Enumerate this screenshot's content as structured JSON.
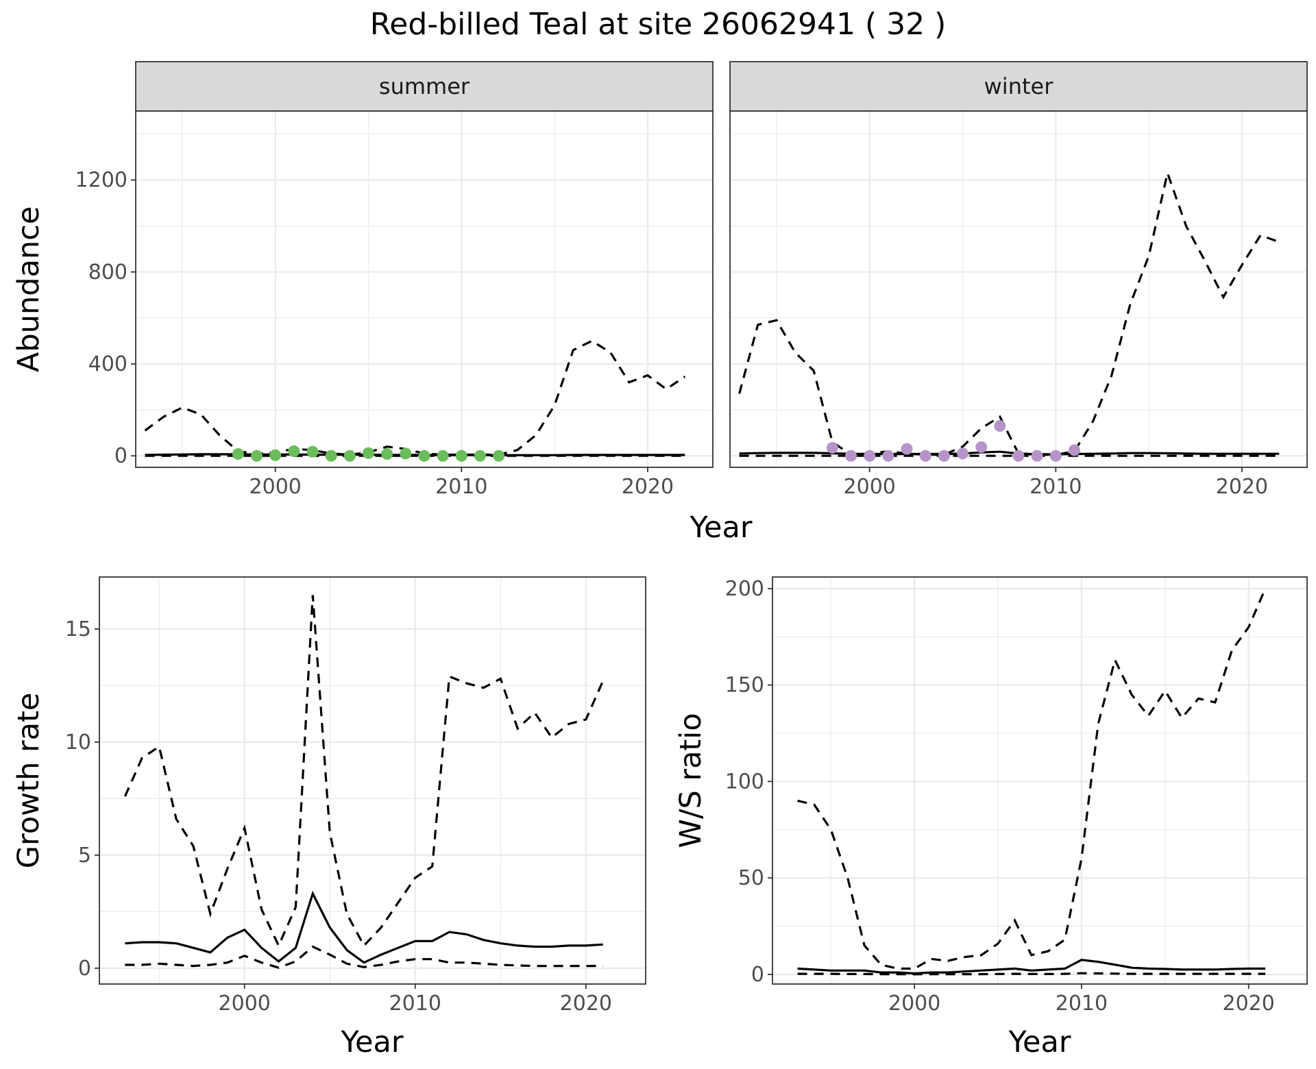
{
  "figure_title": "Red-billed Teal at site 26062941 ( 32 )",
  "colors": {
    "summer_points": "#6abd5a",
    "winter_points": "#b694c9",
    "lines": "#000000"
  },
  "chart_data": [
    {
      "id": "abundance",
      "type": "line",
      "ylabel": "Abundance",
      "xlabel": "Year",
      "xlim": [
        1992.5,
        2023.5
      ],
      "ylim": [
        -50,
        1500
      ],
      "xticks": [
        2000,
        2010,
        2020
      ],
      "yticks": [
        0,
        400,
        800,
        1200
      ],
      "grid": true,
      "facets": [
        {
          "strip": "summer",
          "x": [
            1993,
            1994,
            1995,
            1996,
            1997,
            1998,
            1999,
            2000,
            2001,
            2002,
            2003,
            2004,
            2005,
            2006,
            2007,
            2008,
            2009,
            2010,
            2011,
            2012,
            2013,
            2014,
            2015,
            2016,
            2017,
            2018,
            2019,
            2020,
            2021,
            2022
          ],
          "series": [
            {
              "role": "estimate",
              "style": "solid",
              "values": [
                4,
                5,
                6,
                7,
                7,
                7,
                6,
                6,
                6,
                5,
                5,
                5,
                5,
                4,
                4,
                4,
                3,
                3,
                3,
                3,
                3,
                3,
                3,
                4,
                4,
                4,
                4,
                4,
                4,
                4
              ]
            },
            {
              "role": "upper",
              "style": "dashed",
              "values": [
                110,
                170,
                210,
                180,
                90,
                20,
                8,
                15,
                30,
                25,
                10,
                5,
                15,
                40,
                30,
                10,
                5,
                5,
                5,
                5,
                25,
                90,
                220,
                460,
                500,
                450,
                320,
                350,
                290,
                345
              ]
            },
            {
              "role": "lower",
              "style": "dashed",
              "values": [
                0,
                0,
                0,
                0,
                0,
                0,
                0,
                0,
                0,
                0,
                0,
                0,
                0,
                0,
                0,
                0,
                0,
                0,
                0,
                0,
                0,
                0,
                0,
                0,
                0,
                0,
                0,
                0,
                0,
                0
              ]
            }
          ],
          "observed": {
            "x": [
              1998,
              1999,
              2000,
              2001,
              2002,
              2003,
              2004,
              2005,
              2006,
              2007,
              2008,
              2009,
              2010,
              2011,
              2012
            ],
            "y": [
              8,
              0,
              3,
              20,
              18,
              0,
              0,
              12,
              8,
              10,
              0,
              0,
              0,
              0,
              0
            ]
          }
        },
        {
          "strip": "winter",
          "x": [
            1993,
            1994,
            1995,
            1996,
            1997,
            1998,
            1999,
            2000,
            2001,
            2002,
            2003,
            2004,
            2005,
            2006,
            2007,
            2008,
            2009,
            2010,
            2011,
            2012,
            2013,
            2014,
            2015,
            2016,
            2017,
            2018,
            2019,
            2020,
            2021,
            2022
          ],
          "series": [
            {
              "role": "estimate",
              "style": "solid",
              "values": [
                10,
                12,
                13,
                13,
                13,
                11,
                9,
                8,
                8,
                8,
                8,
                8,
                10,
                15,
                18,
                10,
                7,
                7,
                8,
                9,
                10,
                12,
                12,
                11,
                10,
                9,
                9,
                9,
                9,
                9
              ]
            },
            {
              "role": "upper",
              "style": "dashed",
              "values": [
                270,
                570,
                590,
                450,
                370,
                60,
                5,
                10,
                20,
                10,
                5,
                5,
                40,
                120,
                170,
                10,
                5,
                5,
                20,
                150,
                350,
                660,
                870,
                1230,
                1000,
                850,
                690,
                830,
                960,
                930
              ]
            },
            {
              "role": "lower",
              "style": "dashed",
              "values": [
                0,
                0,
                0,
                0,
                0,
                0,
                0,
                0,
                0,
                0,
                0,
                0,
                0,
                0,
                0,
                0,
                0,
                0,
                0,
                0,
                0,
                0,
                0,
                0,
                0,
                0,
                0,
                0,
                0,
                0
              ]
            }
          ],
          "observed": {
            "x": [
              1998,
              1999,
              2000,
              2001,
              2002,
              2003,
              2004,
              2005,
              2006,
              2007,
              2008,
              2009,
              2010,
              2011
            ],
            "y": [
              35,
              0,
              0,
              0,
              30,
              0,
              0,
              10,
              38,
              130,
              0,
              0,
              0,
              25
            ]
          }
        }
      ]
    },
    {
      "id": "growth",
      "type": "line",
      "ylabel": "Growth rate",
      "xlabel": "Year",
      "xlim": [
        1991.5,
        2023.5
      ],
      "ylim": [
        -0.7,
        17.3
      ],
      "xticks": [
        2000,
        2010,
        2020
      ],
      "yticks": [
        0,
        5,
        10,
        15
      ],
      "grid": true,
      "x": [
        1993,
        1994,
        1995,
        1996,
        1997,
        1998,
        1999,
        2000,
        2001,
        2002,
        2003,
        2004,
        2005,
        2006,
        2007,
        2008,
        2009,
        2010,
        2011,
        2012,
        2013,
        2014,
        2015,
        2016,
        2017,
        2018,
        2019,
        2020,
        2021
      ],
      "series": [
        {
          "role": "estimate",
          "style": "solid",
          "values": [
            1.1,
            1.15,
            1.15,
            1.1,
            0.9,
            0.7,
            1.35,
            1.7,
            0.9,
            0.3,
            0.9,
            3.3,
            1.8,
            0.8,
            0.25,
            0.6,
            0.9,
            1.2,
            1.2,
            1.6,
            1.5,
            1.25,
            1.1,
            1.0,
            0.95,
            0.95,
            1.0,
            1.0,
            1.05
          ]
        },
        {
          "role": "upper",
          "style": "dashed",
          "values": [
            7.6,
            9.3,
            9.8,
            6.6,
            5.4,
            2.4,
            4.4,
            6.2,
            2.6,
            1.0,
            2.7,
            16.5,
            6.0,
            2.4,
            1.0,
            1.8,
            2.9,
            4.0,
            4.5,
            12.9,
            12.6,
            12.4,
            12.8,
            10.6,
            11.3,
            10.2,
            10.8,
            11.0,
            12.7
          ]
        },
        {
          "role": "lower",
          "style": "dashed",
          "values": [
            0.15,
            0.15,
            0.2,
            0.15,
            0.1,
            0.15,
            0.25,
            0.55,
            0.25,
            0.02,
            0.3,
            0.95,
            0.6,
            0.2,
            0.05,
            0.15,
            0.3,
            0.4,
            0.4,
            0.25,
            0.25,
            0.2,
            0.15,
            0.12,
            0.1,
            0.1,
            0.1,
            0.1,
            0.1
          ]
        }
      ]
    },
    {
      "id": "ws_ratio",
      "type": "line",
      "ylabel": "W/S ratio",
      "xlabel": "Year",
      "xlim": [
        1991.5,
        2023.5
      ],
      "ylim": [
        -5,
        206
      ],
      "xticks": [
        2000,
        2010,
        2020
      ],
      "yticks": [
        0,
        50,
        100,
        150,
        200
      ],
      "grid": true,
      "x": [
        1993,
        1994,
        1995,
        1996,
        1997,
        1998,
        1999,
        2000,
        2001,
        2002,
        2003,
        2004,
        2005,
        2006,
        2007,
        2008,
        2009,
        2010,
        2011,
        2012,
        2013,
        2014,
        2015,
        2016,
        2017,
        2018,
        2019,
        2020,
        2021
      ],
      "series": [
        {
          "role": "estimate",
          "style": "solid",
          "values": [
            3,
            2.5,
            2,
            2,
            2,
            1,
            1,
            0.5,
            1,
            1,
            1.5,
            2,
            2.5,
            3,
            2,
            2.5,
            3,
            7.5,
            6.5,
            5,
            3.5,
            3,
            2.8,
            2.5,
            2.5,
            2.5,
            2.8,
            3,
            3
          ]
        },
        {
          "role": "upper",
          "style": "dashed",
          "values": [
            90,
            88,
            75,
            50,
            15,
            5,
            3,
            3,
            8,
            7,
            9,
            10,
            16,
            28,
            10,
            12,
            18,
            60,
            130,
            163,
            145,
            134,
            147,
            133,
            143,
            141,
            168,
            180,
            200
          ]
        },
        {
          "role": "lower",
          "style": "dashed",
          "values": [
            0.3,
            0.3,
            0.3,
            0.2,
            0.2,
            0.1,
            0.1,
            0.05,
            0.1,
            0.1,
            0.1,
            0.1,
            0.2,
            0.3,
            0.2,
            0.2,
            0.3,
            0.6,
            0.5,
            0.4,
            0.3,
            0.3,
            0.3,
            0.3,
            0.3,
            0.3,
            0.3,
            0.3,
            0.3
          ]
        }
      ]
    }
  ]
}
